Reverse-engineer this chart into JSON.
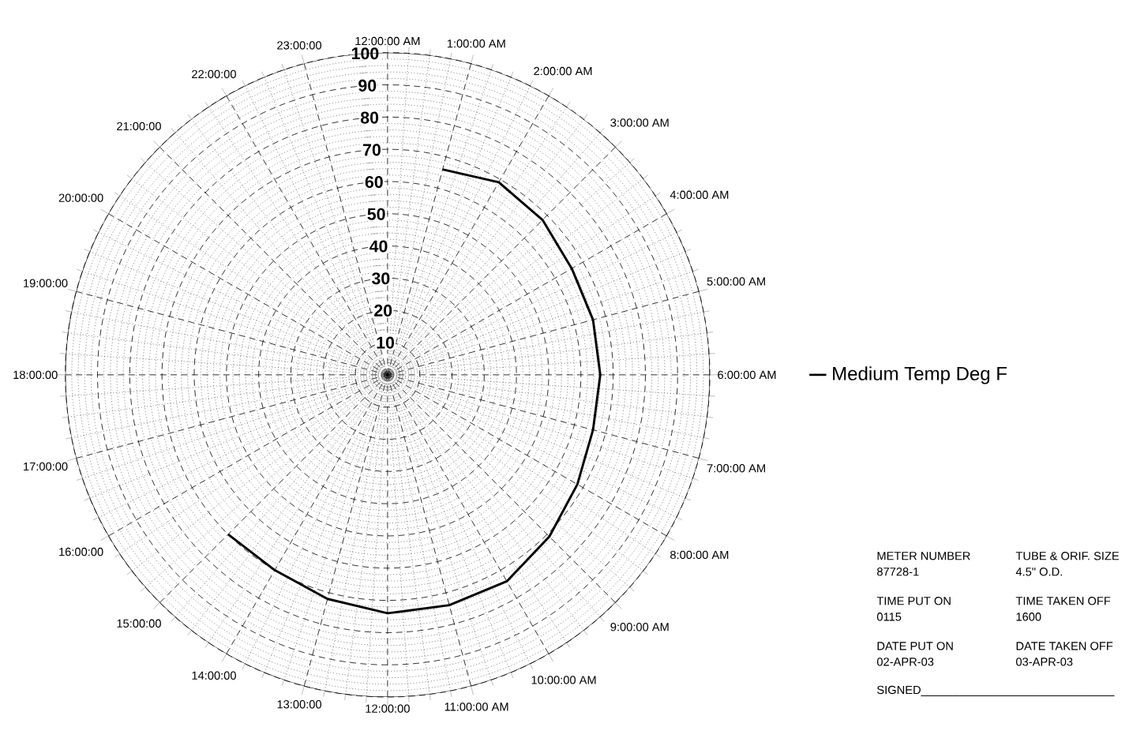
{
  "chart_data": {
    "type": "radar",
    "categories": [
      "12:00:00 AM",
      "1:00:00 AM",
      "2:00:00 AM",
      "3:00:00 AM",
      "4:00:00 AM",
      "5:00:00 AM",
      "6:00:00 AM",
      "7:00:00 AM",
      "8:00:00 AM",
      "9:00:00 AM",
      "10:00:00 AM",
      "11:00:00 AM",
      "12:00:00",
      "13:00:00",
      "14:00:00",
      "15:00:00",
      "16:00:00",
      "17:00:00",
      "18:00:00",
      "19:00:00",
      "20:00:00",
      "21:00:00",
      "22:00:00",
      "23:00:00"
    ],
    "series": [
      {
        "name": "Medium Temp Deg F",
        "color": "#000000",
        "values": [
          null,
          66,
          69,
          68,
          66,
          66,
          66,
          66,
          68,
          71,
          74,
          74,
          74,
          72,
          70,
          70,
          null,
          null,
          null,
          null,
          null,
          null,
          null,
          null
        ]
      }
    ],
    "ylim": [
      0,
      100
    ],
    "yticks": [
      10,
      20,
      30,
      40,
      50,
      60,
      70,
      80,
      90,
      100
    ],
    "grid": true,
    "legend": "right",
    "line_style": "solid",
    "annotations": [
      "METER NUMBER",
      "TUBE & ORIF. SIZE",
      "87728-1",
      "4.5\" O.D.",
      "TIME PUT ON",
      "TIME TAKEN OFF",
      "0115",
      "1600",
      "DATE PUT ON",
      "DATE TAKEN OFF",
      "02-APR-03",
      "03-APR-03",
      "SIGNED______________________________"
    ]
  }
}
